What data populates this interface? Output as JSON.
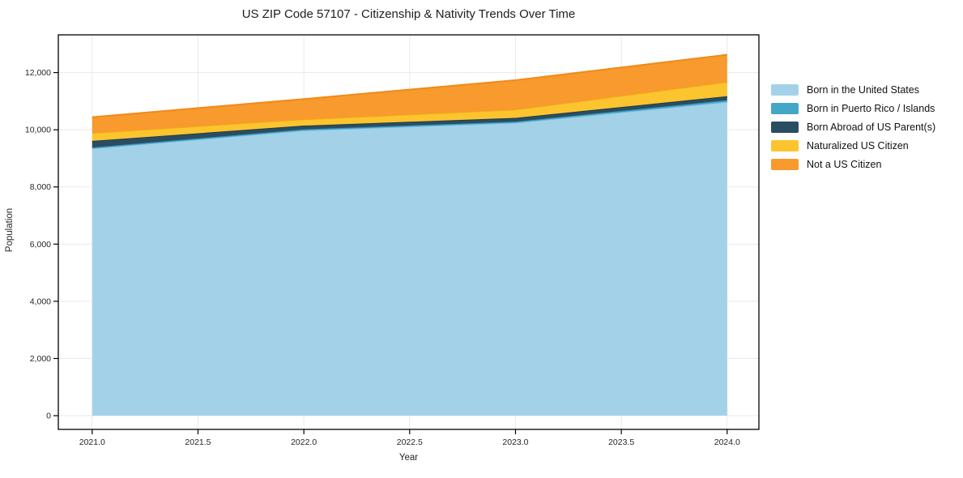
{
  "figure": {
    "title": "US ZIP Code 57107 - Citizenship & Nativity Trends Over Time"
  },
  "axes": {
    "xlabel": "Year",
    "ylabel": "Population",
    "xlim": [
      2020.84,
      2024.15
    ],
    "ylim": [
      -480,
      13320
    ],
    "grid": true,
    "grid_color": "#e9e9e9",
    "spine_color": "#000000",
    "tick_color": "#262626",
    "x_ticks": [
      {
        "value": 2021.0,
        "label": "2021.0"
      },
      {
        "value": 2021.5,
        "label": "2021.5"
      },
      {
        "value": 2022.0,
        "label": "2022.0"
      },
      {
        "value": 2022.5,
        "label": "2022.5"
      },
      {
        "value": 2023.0,
        "label": "2023.0"
      },
      {
        "value": 2023.5,
        "label": "2023.5"
      },
      {
        "value": 2024.0,
        "label": "2024.0"
      }
    ],
    "y_ticks": [
      {
        "value": 0,
        "label": "0"
      },
      {
        "value": 2000,
        "label": "2,000"
      },
      {
        "value": 4000,
        "label": "4,000"
      },
      {
        "value": 6000,
        "label": "6,000"
      },
      {
        "value": 8000,
        "label": "8,000"
      },
      {
        "value": 10000,
        "label": "10,000"
      },
      {
        "value": 12000,
        "label": "12,000"
      }
    ]
  },
  "legend": {
    "position": "center-right-outside",
    "frame": false
  },
  "chart_data": {
    "type": "area",
    "stacked": true,
    "title": "US ZIP Code 57107 - Citizenship & Nativity Trends Over Time",
    "xlabel": "Year",
    "ylabel": "Population",
    "x": [
      2021,
      2022,
      2023,
      2024
    ],
    "series": [
      {
        "name": "Born in the United States",
        "color": "#a3d2e8",
        "edge_color": "#74b9dc",
        "values": [
          9350,
          9980,
          10250,
          10980
        ]
      },
      {
        "name": "Born in Puerto Rico / Islands",
        "color": "#45a7c7",
        "edge_color": "#2f93b6",
        "values": [
          30,
          35,
          35,
          55
        ]
      },
      {
        "name": "Born Abroad of US Parent(s)",
        "color": "#2b4d61",
        "edge_color": "#203d4e",
        "values": [
          230,
          130,
          130,
          140
        ]
      },
      {
        "name": "Naturalized US Citizen",
        "color": "#fcc52f",
        "edge_color": "#f2a818",
        "values": [
          280,
          220,
          290,
          500
        ]
      },
      {
        "name": "Not a US Citizen",
        "color": "#f89a2d",
        "edge_color": "#f18a15",
        "values": [
          550,
          710,
          1030,
          950
        ]
      }
    ],
    "totals": [
      10440,
      11075,
      11735,
      12625
    ]
  }
}
